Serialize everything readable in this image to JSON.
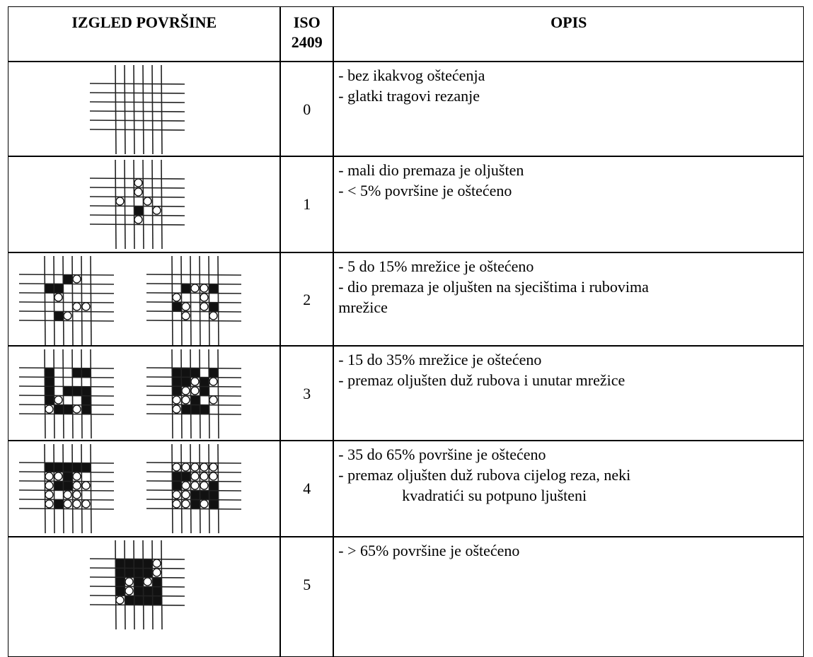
{
  "table": {
    "header": [
      "IZGLED POVRŠINE",
      "ISO 2409",
      "OPIS"
    ],
    "rows": [
      {
        "iso": 0,
        "description": [
          "- bez ikakvog oštećenja",
          "- glatki tragovi rezanje"
        ]
      },
      {
        "iso": 1,
        "description": [
          "- mali dio premaza je oljušten",
          "- < 5% površine je oštećeno"
        ]
      },
      {
        "iso": 2,
        "description": [
          "- 5 do 15% mrežice je oštećeno",
          "- dio premaza je oljušten na sjecištima i rubovima",
          "mrežice"
        ]
      },
      {
        "iso": 3,
        "description": [
          "- 15 do 35% mrežice je oštećeno",
          "- premaz oljušten duž rubova i unutar mrežice"
        ]
      },
      {
        "iso": 4,
        "description": [
          "- 35 do 65% površine je oštećeno",
          "- premaz oljušten duž rubova cijelog reza, neki",
          "kvadratići su potpuno ljušteni"
        ]
      },
      {
        "iso": 5,
        "description": [
          "- > 65% površine je oštećeno"
        ]
      }
    ]
  }
}
